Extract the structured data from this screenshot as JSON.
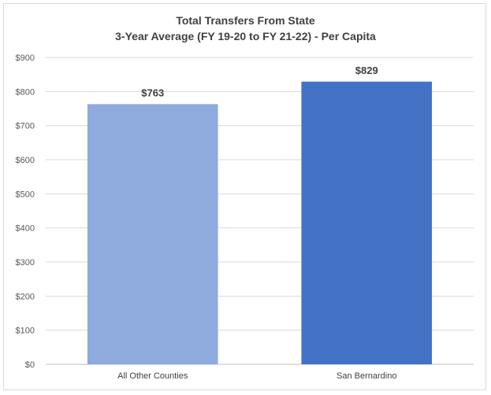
{
  "chart_data": {
    "type": "bar",
    "title": "Total Transfers From State",
    "subtitle": "3-Year Average (FY 19-20 to FY 21-22) - Per Capita",
    "categories": [
      "All Other Counties",
      "San Bernardino"
    ],
    "values": [
      763,
      829
    ],
    "data_labels": [
      "$763",
      "$829"
    ],
    "bar_colors": [
      "#8faadc",
      "#4472c4"
    ],
    "ylim": [
      0,
      900
    ],
    "yticks": [
      0,
      100,
      200,
      300,
      400,
      500,
      600,
      700,
      800,
      900
    ],
    "ytick_labels": [
      "$0",
      "$100",
      "$200",
      "$300",
      "$400",
      "$500",
      "$600",
      "$700",
      "$800",
      "$900"
    ],
    "grid": true,
    "xlabel": "",
    "ylabel": ""
  }
}
